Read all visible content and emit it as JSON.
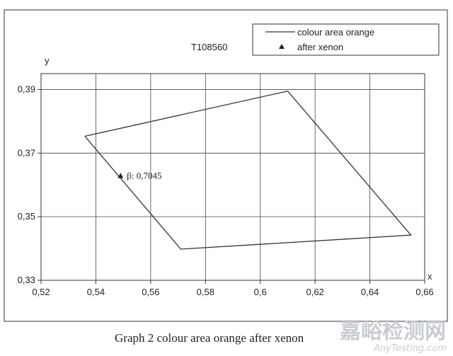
{
  "chart_data": {
    "type": "scatter",
    "chart_id": "T108560",
    "xlabel": "x",
    "ylabel": "y",
    "xlim": [
      0.52,
      0.66
    ],
    "ylim": [
      0.33,
      0.395
    ],
    "x_ticks": [
      0.52,
      0.54,
      0.56,
      0.58,
      0.6,
      0.62,
      0.64,
      0.66
    ],
    "x_tick_labels": [
      "0,52",
      "0,54",
      "0,56",
      "0,58",
      "0,6",
      "0,62",
      "0,64",
      "0,66"
    ],
    "y_ticks": [
      0.33,
      0.35,
      0.37,
      0.39
    ],
    "y_tick_labels": [
      "0,33",
      "0,35",
      "0,37",
      "0,39"
    ],
    "grid": true,
    "legend_position": "top-right",
    "series": [
      {
        "name": "colour area orange",
        "kind": "line",
        "points": [
          {
            "x": 0.536,
            "y": 0.3753
          },
          {
            "x": 0.61,
            "y": 0.3895
          },
          {
            "x": 0.655,
            "y": 0.3442
          },
          {
            "x": 0.571,
            "y": 0.3398
          },
          {
            "x": 0.536,
            "y": 0.3753
          }
        ]
      },
      {
        "name": "after xenon",
        "kind": "marker",
        "points": [
          {
            "x": 0.549,
            "y": 0.3628
          }
        ]
      }
    ],
    "annotation": {
      "text": "β: 0,7045",
      "x": 0.549,
      "y": 0.3628
    },
    "caption": "Graph 2 colour area orange after xenon"
  },
  "watermark": {
    "text_cn": "嘉峪检测网",
    "text_en": "AnyTesting.com"
  }
}
